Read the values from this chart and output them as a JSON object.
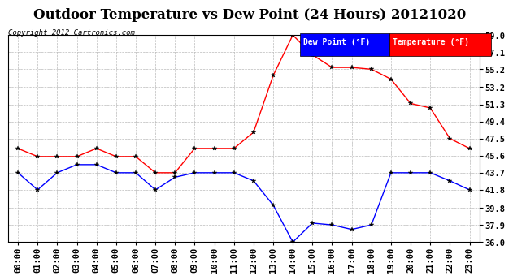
{
  "title": "Outdoor Temperature vs Dew Point (24 Hours) 20121020",
  "copyright": "Copyright 2012 Cartronics.com",
  "hours": [
    "00:00",
    "01:00",
    "02:00",
    "03:00",
    "04:00",
    "05:00",
    "06:00",
    "07:00",
    "08:00",
    "09:00",
    "10:00",
    "11:00",
    "12:00",
    "13:00",
    "14:00",
    "15:00",
    "16:00",
    "17:00",
    "18:00",
    "19:00",
    "20:00",
    "21:00",
    "22:00",
    "23:00"
  ],
  "temperature": [
    46.4,
    45.5,
    45.5,
    45.5,
    46.4,
    45.5,
    45.5,
    43.7,
    43.7,
    46.4,
    46.4,
    46.4,
    48.2,
    54.5,
    59.0,
    56.8,
    55.4,
    55.4,
    55.2,
    54.1,
    51.4,
    50.9,
    47.5,
    46.4
  ],
  "dew_point": [
    43.7,
    41.8,
    43.7,
    44.6,
    44.6,
    43.7,
    43.7,
    41.8,
    43.2,
    43.7,
    43.7,
    43.7,
    42.8,
    40.1,
    36.0,
    38.1,
    37.9,
    37.4,
    37.9,
    43.7,
    43.7,
    43.7,
    42.8,
    41.8
  ],
  "temp_color": "#ff0000",
  "dew_color": "#0000ff",
  "bg_color": "#ffffff",
  "grid_color": "#bbbbbb",
  "ylim": [
    36.0,
    59.0
  ],
  "yticks": [
    36.0,
    37.9,
    39.8,
    41.8,
    43.7,
    45.6,
    47.5,
    49.4,
    51.3,
    53.2,
    55.2,
    57.1,
    59.0
  ],
  "legend_dew_bg": "#0000ff",
  "legend_temp_bg": "#ff0000",
  "legend_text_color": "#ffffff",
  "title_fontsize": 12,
  "tick_fontsize": 7.5
}
